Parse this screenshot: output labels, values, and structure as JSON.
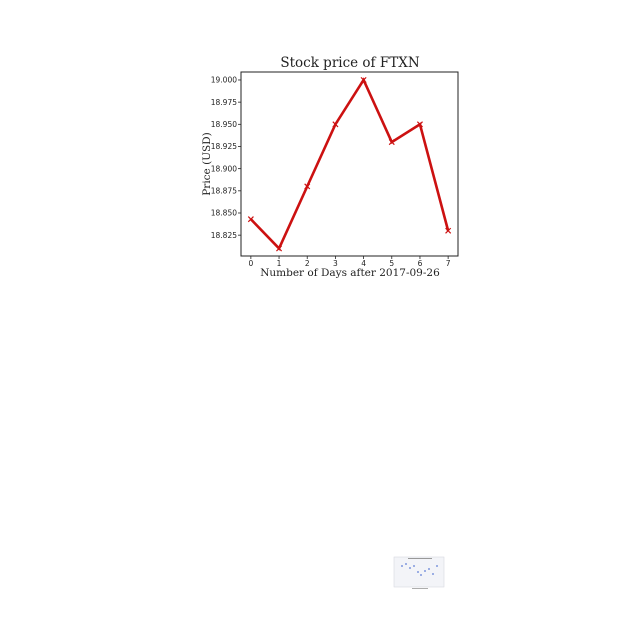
{
  "chart_data": {
    "type": "line",
    "title": "Stock price of FTXN",
    "xlabel": "Number of Days after 2017-09-26",
    "ylabel": "Price (USD)",
    "x": [
      0,
      1,
      2,
      3,
      4,
      5,
      6,
      7
    ],
    "series": [
      {
        "values": [
          18.843,
          18.81,
          18.88,
          18.95,
          19.0,
          18.93,
          18.95,
          18.83
        ]
      }
    ],
    "xticks": [
      "0",
      "1",
      "2",
      "3",
      "4",
      "5",
      "6",
      "7"
    ],
    "yticks": [
      "18.825",
      "18.850",
      "18.875",
      "18.900",
      "18.925",
      "18.950",
      "18.975",
      "19.000"
    ],
    "ytick_values": [
      18.825,
      18.85,
      18.875,
      18.9,
      18.925,
      18.95,
      18.975,
      19.0
    ],
    "xlim": [
      -0.35,
      7.35
    ],
    "ylim": [
      18.8015,
      19.009
    ],
    "grid": false,
    "marker": "x",
    "color": "#cc1111"
  }
}
